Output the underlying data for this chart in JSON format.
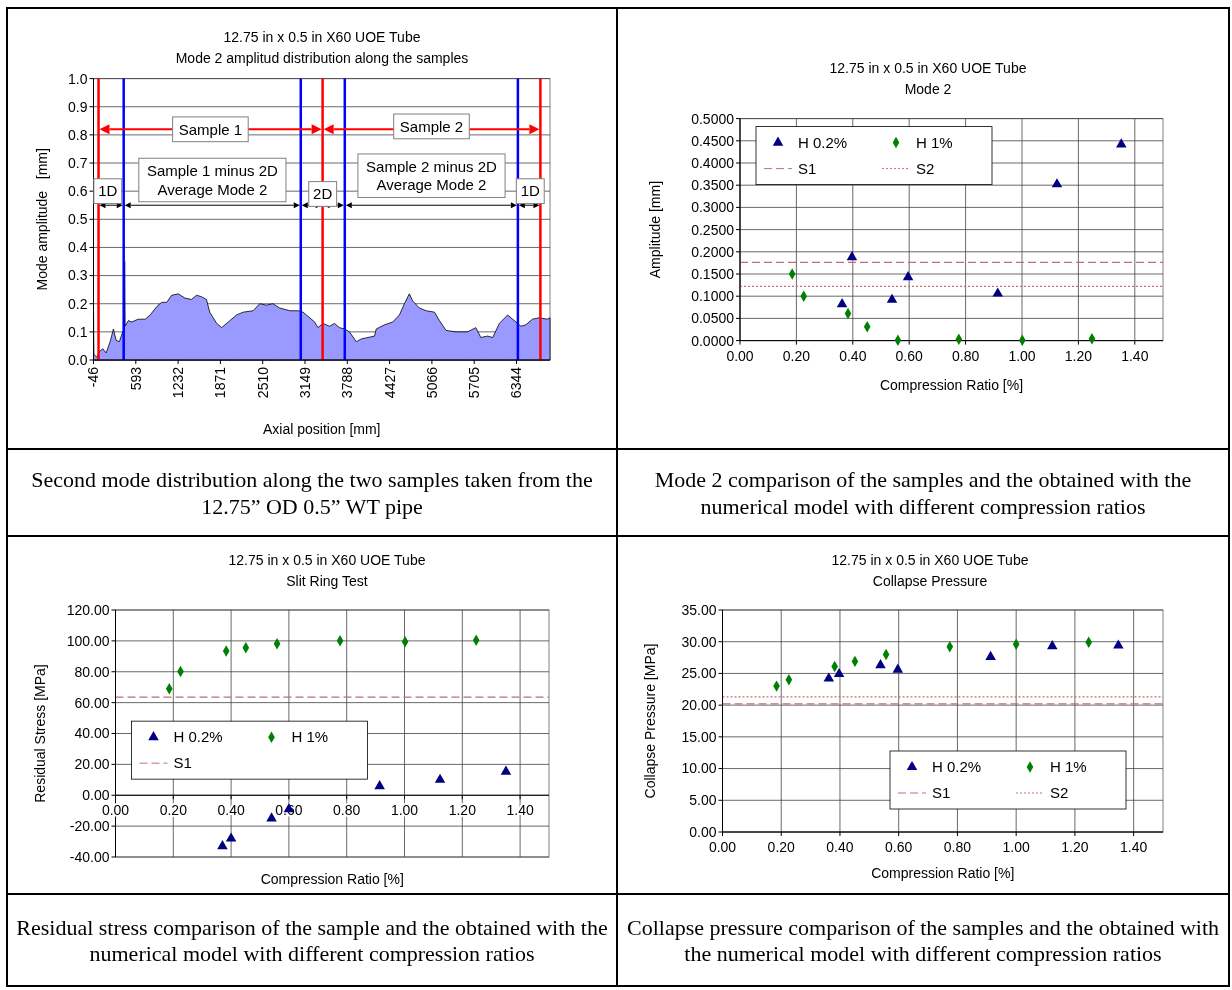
{
  "chart_data": [
    {
      "type": "area",
      "title": "12.75 in x 0.5 in X60 UOE Tube",
      "subtitle": "Mode 2 amplitud distribution along the samples",
      "xlabel": "Axial position   [mm]",
      "ylabel": "Mode amplitude   [mm]",
      "xlim": [
        -46,
        6850
      ],
      "xticks": [
        -46,
        593,
        1232,
        1871,
        2510,
        3149,
        3788,
        4427,
        5066,
        5705,
        6344
      ],
      "ylim": [
        0,
        1
      ],
      "yticks": [
        {
          "value": 0,
          "label": "0.0"
        },
        {
          "value": 0.1,
          "label": "0.1"
        },
        {
          "value": 0.2,
          "label": "0.2"
        },
        {
          "value": 0.3,
          "label": "0.3"
        },
        {
          "value": 0.4,
          "label": "0.4"
        },
        {
          "value": 0.5,
          "label": "0.5"
        },
        {
          "value": 0.6,
          "label": "0.6"
        },
        {
          "value": 0.7,
          "label": "0.7"
        },
        {
          "value": 0.8,
          "label": "0.8"
        },
        {
          "value": 0.9,
          "label": "0.9"
        },
        {
          "value": 1,
          "label": "1.0"
        }
      ],
      "grid": "y",
      "series": [
        {
          "color": "#9999ff",
          "x": [
            -46,
            -40,
            4,
            44,
            95,
            145,
            205,
            255,
            295,
            345,
            395,
            420,
            425,
            432,
            480,
            530,
            630,
            735,
            810,
            910,
            985,
            1060,
            1135,
            1235,
            1335,
            1435,
            1510,
            1585,
            1660,
            1710,
            1815,
            1890,
            1990,
            2115,
            2215,
            2365,
            2465,
            2565,
            2665,
            2765,
            2920,
            3045,
            3120,
            3195,
            3295,
            3345,
            3420,
            3520,
            3595,
            3670,
            3745,
            3820,
            3925,
            4000,
            4100,
            4200,
            4225,
            4350,
            4475,
            4575,
            4650,
            4725,
            4775,
            4875,
            4980,
            5105,
            5180,
            5280,
            5430,
            5605,
            5730,
            5805,
            5905,
            5985,
            6085,
            6210,
            6310,
            6410,
            6485,
            6585,
            6685,
            6810,
            6850
          ],
          "values": [
            0.18,
            0.02,
            0.01,
            0.03,
            0.04,
            0.025,
            0.065,
            0.11,
            0.07,
            0.065,
            0.1,
            0.11,
            0.35,
            0.12,
            0.14,
            0.135,
            0.145,
            0.145,
            0.16,
            0.19,
            0.205,
            0.205,
            0.23,
            0.235,
            0.22,
            0.215,
            0.23,
            0.225,
            0.215,
            0.17,
            0.13,
            0.115,
            0.135,
            0.16,
            0.17,
            0.175,
            0.2,
            0.195,
            0.2,
            0.185,
            0.175,
            0.175,
            0.17,
            0.155,
            0.135,
            0.115,
            0.13,
            0.12,
            0.13,
            0.115,
            0.11,
            0.1,
            0.065,
            0.075,
            0.08,
            0.085,
            0.11,
            0.125,
            0.135,
            0.16,
            0.2,
            0.235,
            0.21,
            0.185,
            0.175,
            0.17,
            0.14,
            0.105,
            0.1,
            0.1,
            0.115,
            0.08,
            0.085,
            0.08,
            0.13,
            0.16,
            0.14,
            0.12,
            0.125,
            0.145,
            0.15,
            0.145,
            0.15
          ]
        }
      ],
      "ref_lines": [
        {
          "axis": "x",
          "value": 30,
          "color": "#ff0000"
        },
        {
          "axis": "x",
          "value": 410,
          "color": "#0000ff"
        },
        {
          "axis": "x",
          "value": 3085,
          "color": "#0000ff"
        },
        {
          "axis": "x",
          "value": 3415,
          "color": "#ff0000"
        },
        {
          "axis": "x",
          "value": 3750,
          "color": "#0000ff"
        },
        {
          "axis": "x",
          "value": 6365,
          "color": "#0000ff"
        },
        {
          "axis": "x",
          "value": 6705,
          "color": "#ff0000"
        }
      ],
      "annotations": [
        "Sample 1",
        "Sample 2",
        "Sample 1 minus 2D\nAverage Mode 2",
        "Sample 2 minus 2D\nAverage Mode 2",
        {
          "text": "1D",
          "x": 170,
          "y": 0.6
        },
        {
          "text": "2D",
          "x": 3416,
          "y": 0.59
        },
        {
          "text": "1D",
          "x": 6552,
          "y": 0.6
        },
        "Second mode distribution along the two samples taken from the 12.75” OD 0.5” WT pipe"
      ]
    },
    {
      "type": "scatter",
      "title": "12.75 in x 0.5 in X60 UOE Tube",
      "subtitle": "Mode 2",
      "xlabel": "Compression Ratio  [%]",
      "ylabel": "Amplitude [mm]",
      "xlim": [
        0,
        1.5
      ],
      "xticks": [
        {
          "value": 0,
          "label": "0.00"
        },
        {
          "value": 0.2,
          "label": "0.20"
        },
        {
          "value": 0.4,
          "label": "0.40"
        },
        {
          "value": 0.6,
          "label": "0.60"
        },
        {
          "value": 0.8,
          "label": "0.80"
        },
        {
          "value": 1,
          "label": "1.00"
        },
        {
          "value": 1.2,
          "label": "1.20"
        },
        {
          "value": 1.4,
          "label": "1.40"
        }
      ],
      "ylim": [
        0,
        0.5
      ],
      "yticks": [
        {
          "value": 0,
          "label": "0.0000"
        },
        {
          "value": 0.05,
          "label": "0.0500"
        },
        {
          "value": 0.1,
          "label": "0.1000"
        },
        {
          "value": 0.15,
          "label": "0.1500"
        },
        {
          "value": 0.2,
          "label": "0.2000"
        },
        {
          "value": 0.25,
          "label": "0.2500"
        },
        {
          "value": 0.3,
          "label": "0.3000"
        },
        {
          "value": 0.35,
          "label": "0.3500"
        },
        {
          "value": 0.4,
          "label": "0.4000"
        },
        {
          "value": 0.45,
          "label": "0.4500"
        },
        {
          "value": 0.5,
          "label": "0.5000"
        }
      ],
      "grid": true,
      "legend": "top left",
      "series": [
        {
          "name": "H 0.2%",
          "color": "#000080",
          "marker": "triangle",
          "x": [
            0.362,
            0.397,
            0.539,
            0.596,
            0.914,
            1.124,
            1.352
          ],
          "values": [
            0.082,
            0.188,
            0.092,
            0.143,
            0.106,
            0.352,
            0.442
          ]
        },
        {
          "name": "H 1%",
          "color": "#008000",
          "marker": "diamond",
          "x": [
            0.185,
            0.226,
            0.383,
            0.451,
            0.56,
            0.776,
            1.001,
            1.248
          ],
          "values": [
            0.15,
            0.1,
            0.061,
            0.031,
            0.001,
            0.003,
            0.001,
            0.004
          ]
        }
      ],
      "ref_lines": [
        {
          "axis": "y",
          "value": 0.176,
          "label": "S1",
          "color": "#c07070",
          "line_style": "dashed"
        },
        {
          "axis": "y",
          "value": 0.122,
          "label": "S2",
          "color": "#c07070",
          "line_style": "dotted"
        }
      ],
      "annotations": [
        "Mode 2 comparison of the samples and the obtained with the numerical model with different compression ratios"
      ]
    },
    {
      "type": "scatter",
      "title": "12.75 in x 0.5 in X60 UOE Tube",
      "subtitle": "Slit Ring Test",
      "xlabel": "Compression Ratio  [%]",
      "ylabel": "Residual Stress [MPa]",
      "xlim": [
        0,
        1.5
      ],
      "xticks": [
        {
          "value": 0,
          "label": "0.00"
        },
        {
          "value": 0.2,
          "label": "0.20"
        },
        {
          "value": 0.4,
          "label": "0.40"
        },
        {
          "value": 0.6,
          "label": "0.60"
        },
        {
          "value": 0.8,
          "label": "0.80"
        },
        {
          "value": 1,
          "label": "1.00"
        },
        {
          "value": 1.2,
          "label": "1.20"
        },
        {
          "value": 1.4,
          "label": "1.40"
        }
      ],
      "ylim": [
        -40,
        120
      ],
      "yticks": [
        {
          "value": -40,
          "label": "-40.00"
        },
        {
          "value": -20,
          "label": "-20.00"
        },
        {
          "value": 0,
          "label": "0.00"
        },
        {
          "value": 20,
          "label": "20.00"
        },
        {
          "value": 40,
          "label": "40.00"
        },
        {
          "value": 60,
          "label": "60.00"
        },
        {
          "value": 80,
          "label": "80.00"
        },
        {
          "value": 100,
          "label": "100.00"
        },
        {
          "value": 120,
          "label": "120.00"
        }
      ],
      "grid": true,
      "legend": "left",
      "series": [
        {
          "name": "H 0.2%",
          "color": "#000080",
          "marker": "triangle",
          "x": [
            0.37,
            0.4,
            0.54,
            0.6,
            0.914,
            1.123,
            1.351
          ],
          "values": [
            -33,
            -28,
            -15,
            -9,
            5.9,
            10,
            15.3
          ]
        },
        {
          "name": "H 1%",
          "color": "#008000",
          "marker": "diamond",
          "x": [
            0.186,
            0.225,
            0.383,
            0.451,
            0.559,
            0.777,
            1.002,
            1.248
          ],
          "values": [
            69,
            80.2,
            93.5,
            95.5,
            98.1,
            100.1,
            99.4,
            100.4
          ]
        }
      ],
      "ref_lines": [
        {
          "axis": "y",
          "value": 63.6,
          "label": "S1",
          "color": "#c07070",
          "line_style": "dashed"
        }
      ],
      "annotations": [
        "Residual stress comparison of the sample and the obtained with the numerical model with different compression ratios"
      ]
    },
    {
      "type": "scatter",
      "title": "12.75 in x 0.5 in X60 UOE Tube",
      "subtitle": "Collapse Pressure",
      "xlabel": "Compression Ratio  [%]",
      "ylabel": "Collapse Pressure [MPa]",
      "xlim": [
        0,
        1.5
      ],
      "xticks": [
        {
          "value": 0,
          "label": "0.00"
        },
        {
          "value": 0.2,
          "label": "0.20"
        },
        {
          "value": 0.4,
          "label": "0.40"
        },
        {
          "value": 0.6,
          "label": "0.60"
        },
        {
          "value": 0.8,
          "label": "0.80"
        },
        {
          "value": 1,
          "label": "1.00"
        },
        {
          "value": 1.2,
          "label": "1.20"
        },
        {
          "value": 1.4,
          "label": "1.40"
        }
      ],
      "ylim": [
        0,
        35
      ],
      "yticks": [
        {
          "value": 0,
          "label": "0.00"
        },
        {
          "value": 5,
          "label": "5.00"
        },
        {
          "value": 10,
          "label": "10.00"
        },
        {
          "value": 15,
          "label": "15.00"
        },
        {
          "value": 20,
          "label": "20.00"
        },
        {
          "value": 25,
          "label": "25.00"
        },
        {
          "value": 30,
          "label": "30.00"
        },
        {
          "value": 35,
          "label": "35.00"
        }
      ],
      "grid": true,
      "legend": "bottom right",
      "series": [
        {
          "name": "H 0.2%",
          "color": "#000080",
          "marker": "triangle",
          "x": [
            0.362,
            0.397,
            0.538,
            0.597,
            0.913,
            1.123,
            1.348
          ],
          "values": [
            24.2,
            24.9,
            26.3,
            25.6,
            27.6,
            29.3,
            29.4
          ]
        },
        {
          "name": "H 1%",
          "color": "#008000",
          "marker": "diamond",
          "x": [
            0.184,
            0.226,
            0.382,
            0.451,
            0.557,
            0.774,
            1,
            1.247
          ],
          "values": [
            23,
            24,
            26.1,
            26.9,
            28,
            29.2,
            29.6,
            29.9
          ]
        }
      ],
      "ref_lines": [
        {
          "axis": "y",
          "value": 20.2,
          "label": "S1",
          "color": "#c07070",
          "line_style": "dashed"
        },
        {
          "axis": "y",
          "value": 21.3,
          "label": "S2",
          "color": "#c07070",
          "line_style": "dotted"
        }
      ],
      "annotations": [
        "Collapse pressure comparison of the samples and the obtained with the numerical model with different compression ratios"
      ]
    }
  ]
}
